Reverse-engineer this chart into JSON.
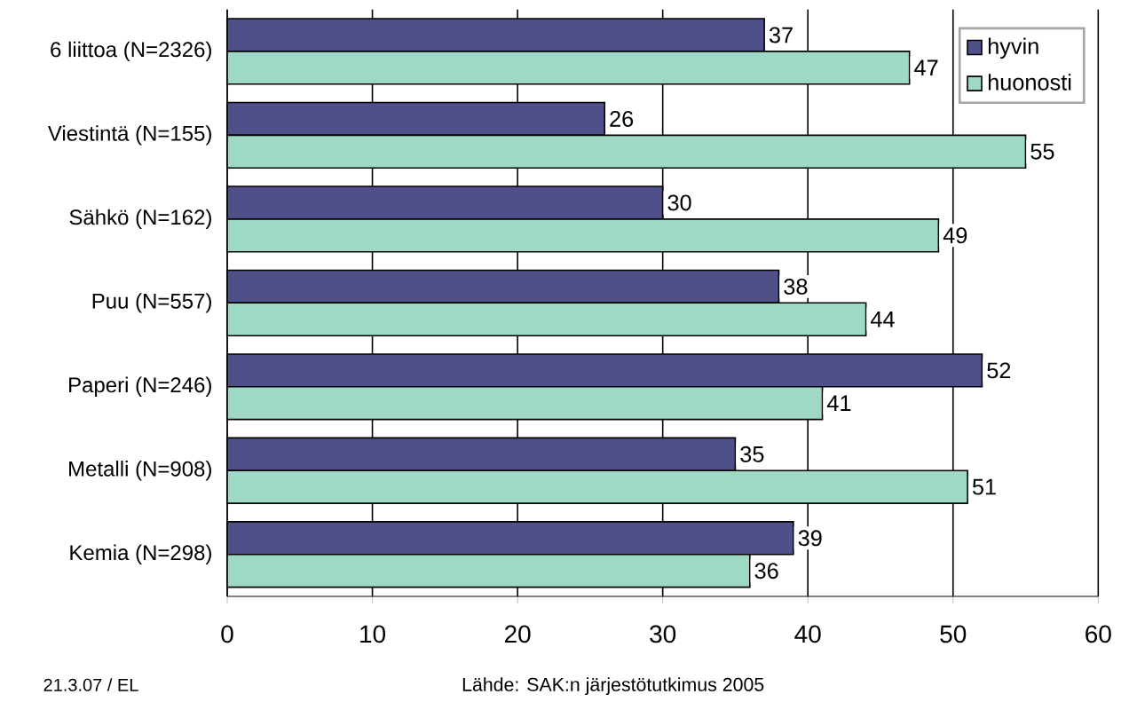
{
  "chart_data": {
    "type": "bar",
    "orientation": "horizontal",
    "categories": [
      "6 liittoa (N=2326)",
      "Viestintä (N=155)",
      "Sähkö (N=162)",
      "Puu (N=557)",
      "Paperi (N=246)",
      "Metalli (N=908)",
      "Kemia (N=298)"
    ],
    "series": [
      {
        "name": "hyvin",
        "color": "#4f4f8a",
        "values": [
          37,
          26,
          30,
          38,
          52,
          35,
          39
        ]
      },
      {
        "name": "huonosti",
        "color": "#9dd9c5",
        "values": [
          47,
          55,
          49,
          44,
          41,
          51,
          36
        ]
      }
    ],
    "xlim": [
      0,
      60
    ],
    "xticks": [
      0,
      10,
      20,
      30,
      40,
      50,
      60
    ],
    "grid": "x",
    "legend": "top right",
    "data_labels": true,
    "annotations": [
      "21.3.07 / EL",
      "Lähde: SAK:n järjestötutkimus 2005"
    ]
  }
}
